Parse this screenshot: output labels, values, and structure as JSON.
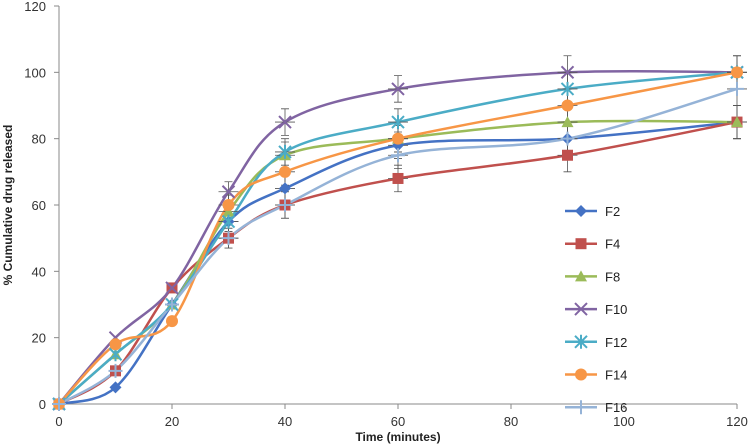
{
  "chart_data": {
    "type": "line",
    "title": "",
    "xlabel": "Time (minutes)",
    "ylabel": "% Cumulative drug released",
    "xlim": [
      0,
      120
    ],
    "ylim": [
      0,
      120
    ],
    "x_ticks": [
      "0",
      "20",
      "40",
      "60",
      "80",
      "100",
      "120"
    ],
    "y_ticks": [
      "0",
      "20",
      "40",
      "60",
      "80",
      "100",
      "120"
    ],
    "grid": false,
    "legend_position": "right",
    "x": [
      0,
      10,
      20,
      30,
      40,
      60,
      90,
      120
    ],
    "series": [
      {
        "name": "F2",
        "color": "#4472C4",
        "marker": "diamond",
        "values": [
          0,
          5,
          30,
          55,
          65,
          78,
          80,
          85
        ]
      },
      {
        "name": "F4",
        "color": "#C0504D",
        "marker": "square",
        "values": [
          0,
          10,
          35,
          50,
          60,
          68,
          75,
          85
        ]
      },
      {
        "name": "F8",
        "color": "#9BBB59",
        "marker": "triangle",
        "values": [
          0,
          15,
          30,
          58,
          75,
          80,
          85,
          85
        ]
      },
      {
        "name": "F10",
        "color": "#8064A2",
        "marker": "x",
        "values": [
          0,
          20,
          35,
          64,
          85,
          95,
          100,
          100
        ]
      },
      {
        "name": "F12",
        "color": "#4BACC6",
        "marker": "star",
        "values": [
          0,
          15,
          30,
          55,
          76,
          85,
          95,
          100
        ]
      },
      {
        "name": "F14",
        "color": "#F79646",
        "marker": "circle",
        "values": [
          0,
          18,
          25,
          60,
          70,
          80,
          90,
          100
        ]
      },
      {
        "name": "F16",
        "color": "#95B3D7",
        "marker": "plus",
        "values": [
          0,
          10,
          30,
          50,
          60,
          75,
          80,
          95
        ]
      }
    ],
    "error_bars": {
      "30": 3,
      "40": 4,
      "60": 4,
      "90": 5,
      "120": 5
    }
  }
}
